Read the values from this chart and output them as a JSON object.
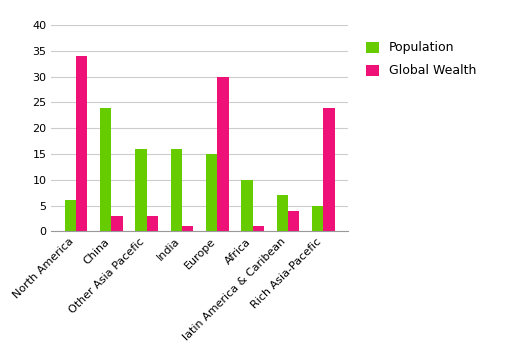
{
  "categories": [
    "North America",
    "China",
    "Other Asia Pacefic",
    "India",
    "Europe",
    "Africa",
    "latin America & Caribean",
    "Rich Asia-Pacefic"
  ],
  "population": [
    6,
    24,
    16,
    16,
    15,
    10,
    7,
    5
  ],
  "global_wealth": [
    34,
    3,
    3,
    1,
    30,
    1,
    4,
    24
  ],
  "bar_color_population": "#66cc00",
  "bar_color_wealth": "#ee1177",
  "ylim": [
    0,
    40
  ],
  "yticks": [
    0,
    5,
    10,
    15,
    20,
    25,
    30,
    35,
    40
  ],
  "legend_population": "Population",
  "legend_wealth": "Global Wealth",
  "background_color": "#ffffff",
  "grid_color": "#cccccc",
  "bar_width": 0.32,
  "tick_fontsize": 8,
  "legend_fontsize": 9
}
